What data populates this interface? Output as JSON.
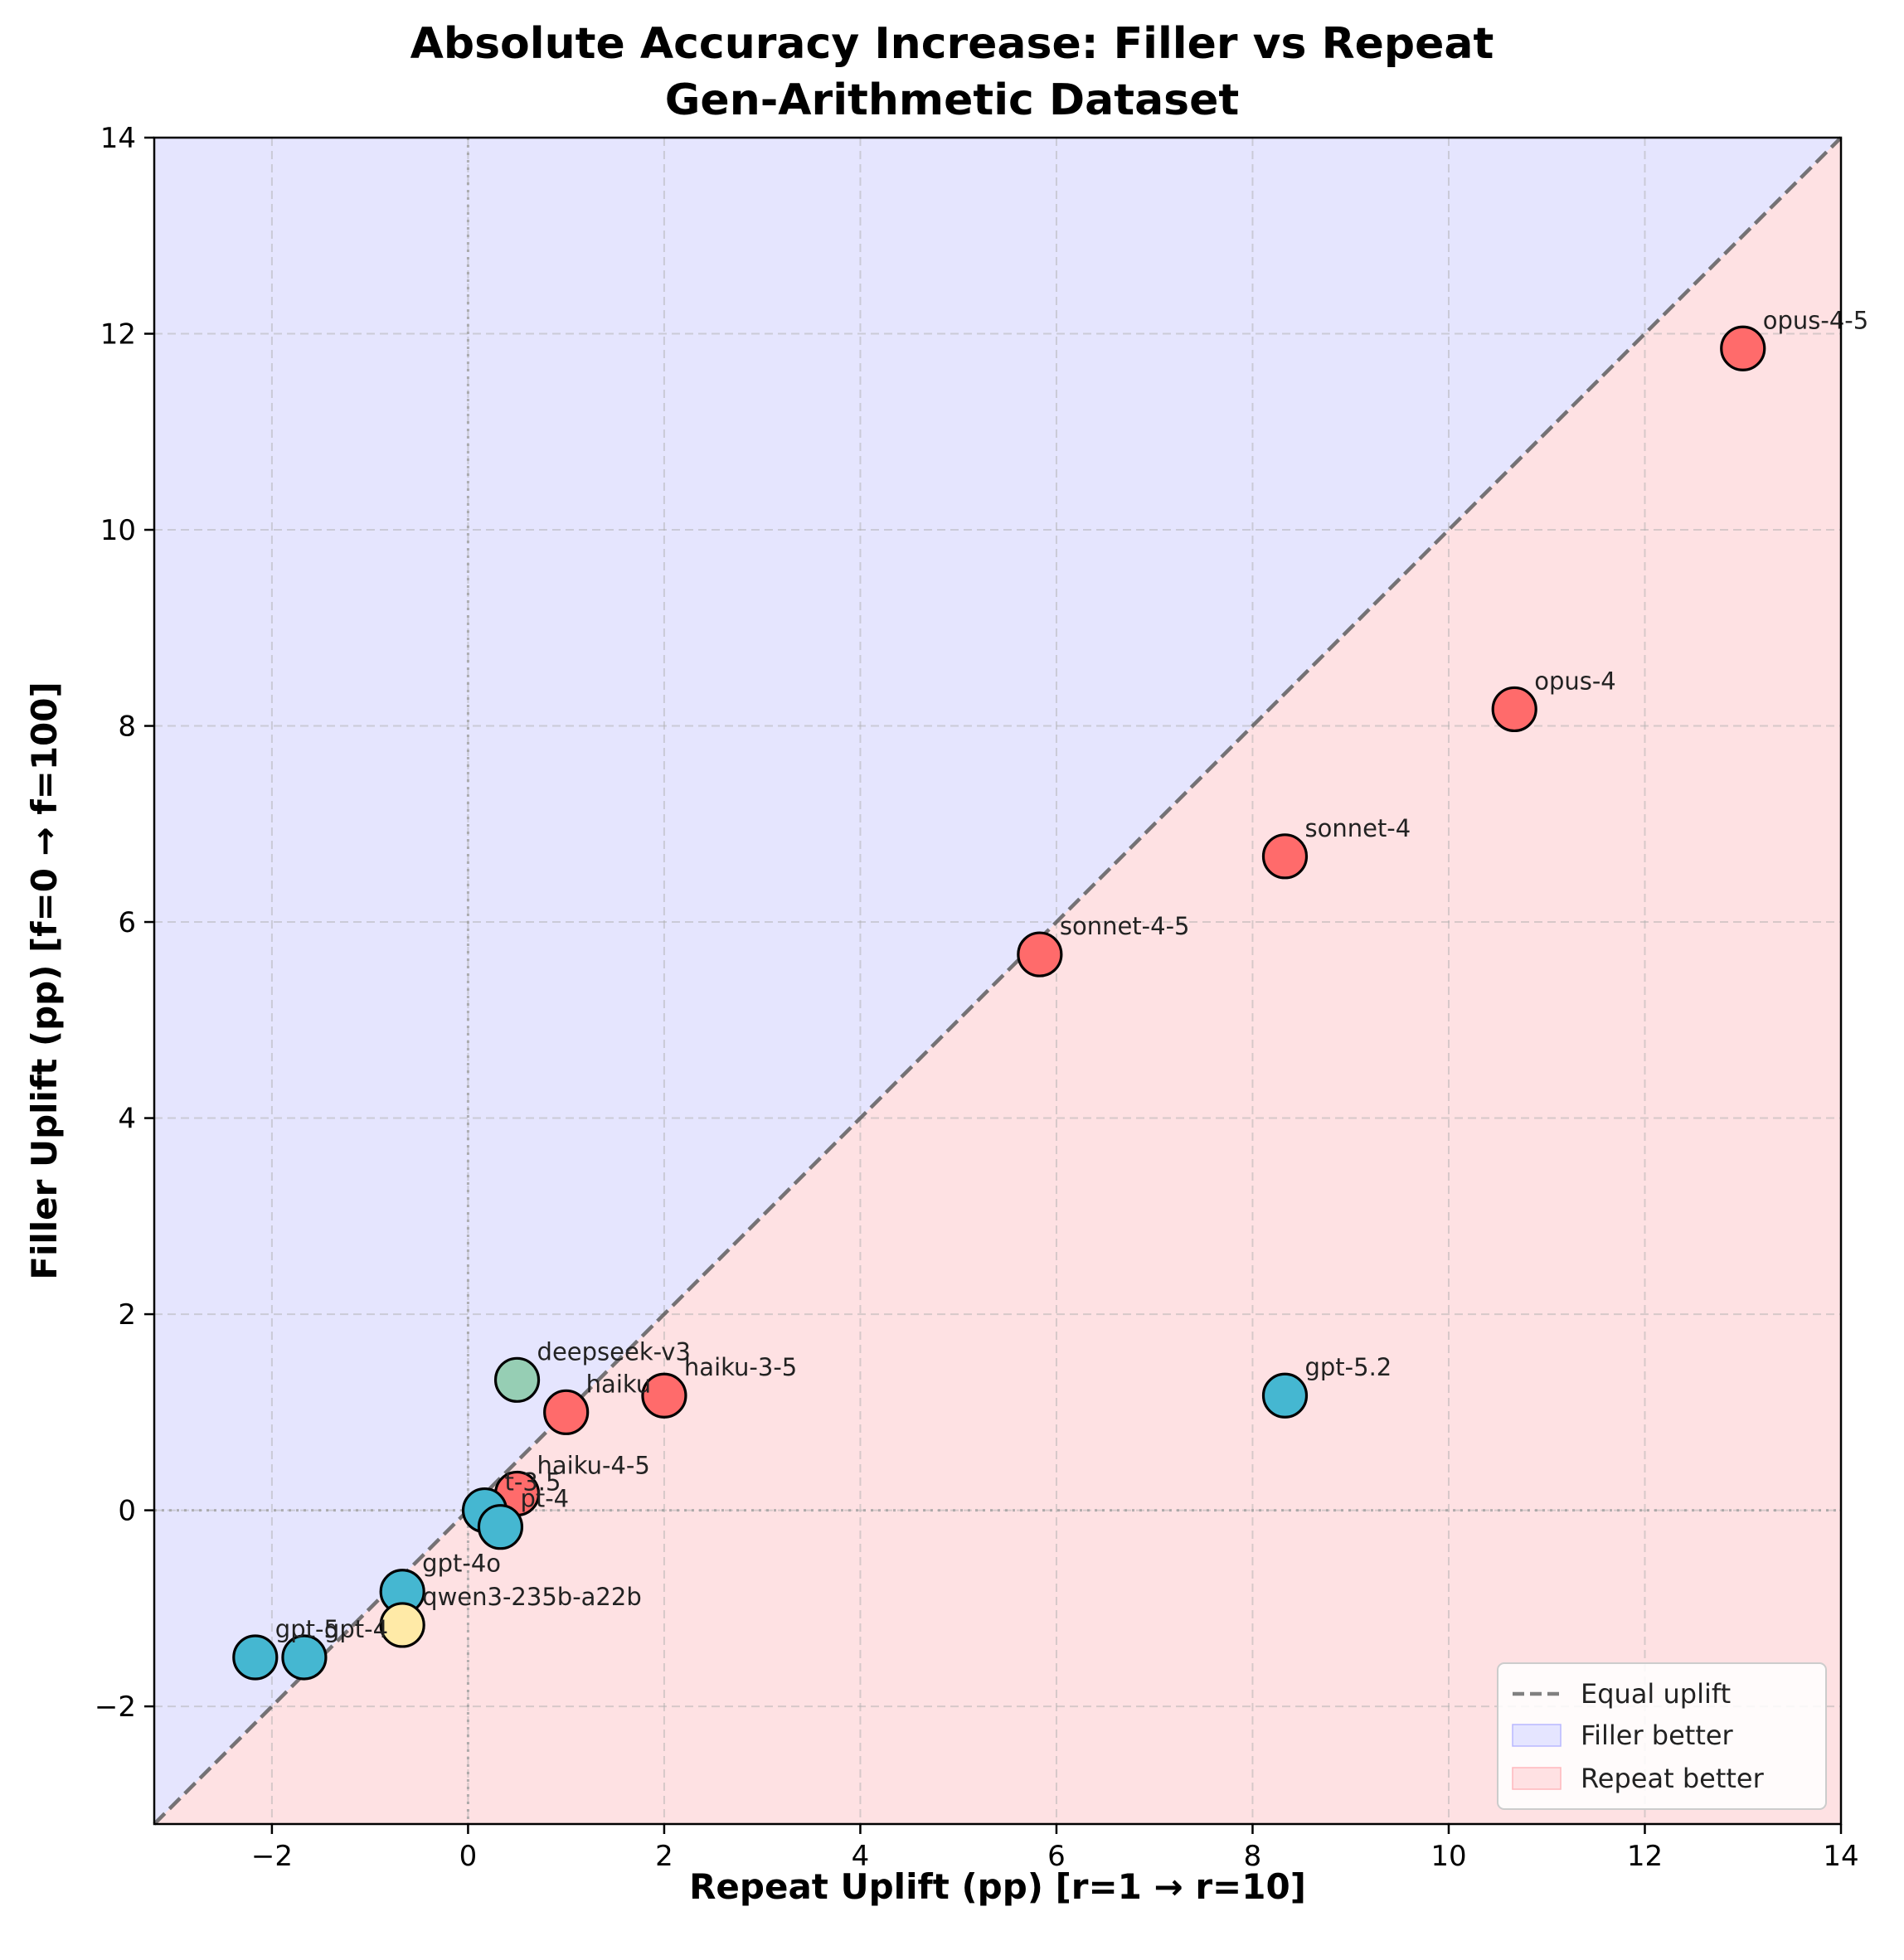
{
  "chart_data": {
    "type": "scatter",
    "title": "Absolute Accuracy Increase: Filler vs Repeat",
    "subtitle": "Gen-Arithmetic Dataset",
    "xlabel": "Repeat Uplift (pp) [r=1 → r=10]",
    "ylabel": "Filler Uplift (pp) [f=0 → f=100]",
    "xlim": [
      -3.2,
      14
    ],
    "ylim": [
      -3.2,
      14
    ],
    "xticks": [
      -2,
      0,
      2,
      4,
      6,
      8,
      10,
      12,
      14
    ],
    "yticks": [
      -2,
      0,
      2,
      4,
      6,
      8,
      10,
      12,
      14
    ],
    "xtick_labels": [
      "−2",
      "0",
      "2",
      "4",
      "6",
      "8",
      "10",
      "12",
      "14"
    ],
    "ytick_labels": [
      "−2",
      "0",
      "2",
      "4",
      "6",
      "8",
      "10",
      "12",
      "14"
    ],
    "grid": true,
    "legend_position": "lower-right",
    "legend": [
      {
        "label": "Equal uplift",
        "kind": "dashed-line",
        "color": "#808080"
      },
      {
        "label": "Filler better",
        "kind": "patch",
        "color": "#e5e5ff"
      },
      {
        "label": "Repeat better",
        "kind": "patch",
        "color": "#ffe1e3"
      }
    ],
    "region_colors": {
      "filler_better": "#e5e5fe",
      "repeat_better": "#fee1e3"
    },
    "points": [
      {
        "label": "opus-4-5",
        "x": 13.0,
        "y": 11.85,
        "color": "#ff6b6b"
      },
      {
        "label": "opus-4",
        "x": 10.67,
        "y": 8.17,
        "color": "#ff6b6b"
      },
      {
        "label": "sonnet-4",
        "x": 8.33,
        "y": 6.67,
        "color": "#ff6b6b"
      },
      {
        "label": "sonnet-4-5",
        "x": 5.83,
        "y": 5.67,
        "color": "#ff6b6b"
      },
      {
        "label": "gpt-5.2",
        "x": 8.33,
        "y": 1.17,
        "color": "#45b7d1"
      },
      {
        "label": "deepseek-v3",
        "x": 0.5,
        "y": 1.33,
        "color": "#96ceb4"
      },
      {
        "label": "haiku-3-5",
        "x": 2.0,
        "y": 1.17,
        "color": "#ff6b6b"
      },
      {
        "label": "haiku",
        "x": 1.0,
        "y": 1.0,
        "color": "#ff6b6b"
      },
      {
        "label": "haiku-4-5",
        "x": 0.5,
        "y": 0.17,
        "color": "#ff6b6b"
      },
      {
        "label": "t-3.5",
        "x": 0.17,
        "y": 0.0,
        "color": "#45b7d1"
      },
      {
        "label": "pt-4",
        "x": 0.33,
        "y": -0.17,
        "color": "#45b7d1"
      },
      {
        "label": "gpt-4o",
        "x": -0.67,
        "y": -0.83,
        "color": "#45b7d1"
      },
      {
        "label": "qwen3-235b-a22b",
        "x": -0.67,
        "y": -1.17,
        "color": "#ffeaa7"
      },
      {
        "label": "gpt-5",
        "x": -2.17,
        "y": -1.5,
        "color": "#45b7d1"
      },
      {
        "label": "gpt-4",
        "x": -1.67,
        "y": -1.5,
        "color": "#45b7d1"
      }
    ]
  }
}
